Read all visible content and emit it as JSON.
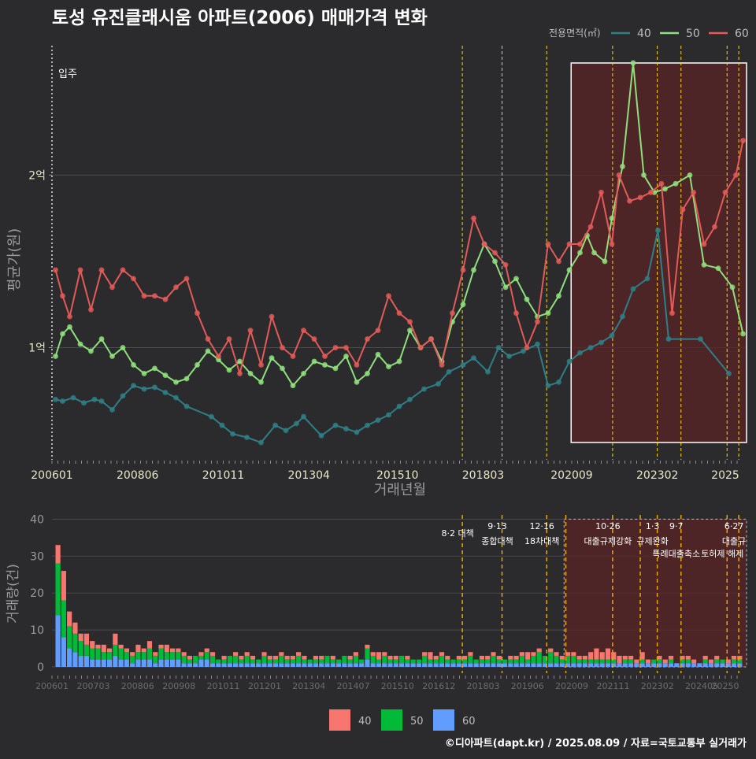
{
  "title": "토성 유진클래시움 아파트(2006) 매매가격 변화",
  "footer": "©디아파트(dapt.kr) / 2025.08.09 / 자료=국토교통부 실거래가",
  "colors": {
    "background": "#2b2b2d",
    "s40": "#2f7f86",
    "s50": "#8fe07c",
    "s60": "#e35a58",
    "bar40": "#f8766d",
    "bar50": "#00ba38",
    "bar60": "#619cff",
    "policy": "#ffd700",
    "policy_bottom": "#e6a800",
    "highlight": "#5a2424"
  },
  "chart_data": [
    {
      "type": "line",
      "title": "토성 유진클래시움 아파트(2006) 매매가격 변화",
      "xlabel": "거래년월",
      "ylabel": "평균가(원)",
      "x_ticks": [
        "200601",
        "200806",
        "201011",
        "201304",
        "201510",
        "201803",
        "202009",
        "202302",
        "2025"
      ],
      "y_ticks": [
        {
          "value": 1.0,
          "label": "1억"
        },
        {
          "value": 2.0,
          "label": "2억"
        }
      ],
      "xlim": [
        2006.0,
        2025.6
      ],
      "ylim": [
        0.35,
        2.75
      ],
      "legend_title": "전용면적(㎡)",
      "legend_position": "top-right",
      "annotation": "입주",
      "annotation_x": 2006.0,
      "policy_lines": [
        2017.58,
        2018.7,
        2019.96,
        2021.82,
        2023.08,
        2023.75,
        2025.05,
        2025.38
      ],
      "highlight_range": [
        2020.65,
        2025.6
      ],
      "series": [
        {
          "name": "40",
          "x": [
            2006.1,
            2006.3,
            2006.6,
            2006.9,
            2007.2,
            2007.4,
            2007.7,
            2008.0,
            2008.3,
            2008.6,
            2008.9,
            2009.2,
            2009.5,
            2009.8,
            2010.5,
            2010.8,
            2011.1,
            2011.5,
            2011.9,
            2012.3,
            2012.6,
            2012.9,
            2013.1,
            2013.6,
            2014.0,
            2014.3,
            2014.6,
            2014.9,
            2015.2,
            2015.5,
            2015.8,
            2016.1,
            2016.5,
            2016.9,
            2017.2,
            2017.6,
            2017.9,
            2018.3,
            2018.6,
            2018.9,
            2019.3,
            2019.7,
            2020.0,
            2020.3,
            2020.6,
            2020.9,
            2021.2,
            2021.5,
            2021.8,
            2022.1,
            2022.4,
            2022.8,
            2023.1,
            2023.4,
            2024.3,
            2025.1
          ],
          "y": [
            0.7,
            0.69,
            0.71,
            0.68,
            0.7,
            0.69,
            0.64,
            0.72,
            0.78,
            0.76,
            0.77,
            0.74,
            0.71,
            0.66,
            0.6,
            0.55,
            0.5,
            0.48,
            0.45,
            0.55,
            0.52,
            0.56,
            0.6,
            0.49,
            0.55,
            0.53,
            0.51,
            0.55,
            0.58,
            0.61,
            0.66,
            0.7,
            0.76,
            0.79,
            0.86,
            0.9,
            0.94,
            0.86,
            1.0,
            0.95,
            0.98,
            1.02,
            0.78,
            0.8,
            0.92,
            0.97,
            1.0,
            1.03,
            1.07,
            1.18,
            1.34,
            1.4,
            1.68,
            1.05,
            1.05,
            0.85
          ]
        },
        {
          "name": "50",
          "x": [
            2006.1,
            2006.3,
            2006.5,
            2006.8,
            2007.1,
            2007.4,
            2007.7,
            2008.0,
            2008.3,
            2008.6,
            2008.9,
            2009.2,
            2009.5,
            2009.8,
            2010.1,
            2010.4,
            2010.7,
            2011.0,
            2011.3,
            2011.6,
            2011.9,
            2012.2,
            2012.5,
            2012.8,
            2013.1,
            2013.4,
            2013.7,
            2014.0,
            2014.3,
            2014.6,
            2014.9,
            2015.2,
            2015.5,
            2015.8,
            2016.1,
            2016.4,
            2016.7,
            2017.0,
            2017.3,
            2017.6,
            2017.9,
            2018.2,
            2018.5,
            2018.8,
            2019.1,
            2019.4,
            2019.7,
            2020.0,
            2020.3,
            2020.6,
            2020.9,
            2021.1,
            2021.3,
            2021.6,
            2021.8,
            2022.1,
            2022.4,
            2022.7,
            2023.0,
            2023.3,
            2023.6,
            2024.0,
            2024.4,
            2024.8,
            2025.2,
            2025.5
          ],
          "y": [
            0.95,
            1.08,
            1.12,
            1.02,
            0.98,
            1.05,
            0.95,
            1.0,
            0.9,
            0.85,
            0.88,
            0.84,
            0.8,
            0.82,
            0.9,
            0.98,
            0.93,
            0.87,
            0.92,
            0.85,
            0.8,
            0.94,
            0.88,
            0.78,
            0.85,
            0.92,
            0.9,
            0.88,
            0.95,
            0.8,
            0.85,
            0.96,
            0.89,
            0.92,
            1.1,
            1.0,
            1.05,
            0.92,
            1.15,
            1.25,
            1.45,
            1.6,
            1.5,
            1.35,
            1.4,
            1.28,
            1.18,
            1.2,
            1.3,
            1.45,
            1.55,
            1.65,
            1.55,
            1.5,
            1.75,
            2.05,
            2.65,
            2.0,
            1.9,
            1.92,
            1.95,
            2.0,
            1.48,
            1.46,
            1.35,
            1.08
          ]
        },
        {
          "name": "60",
          "x": [
            2006.1,
            2006.3,
            2006.5,
            2006.8,
            2007.1,
            2007.4,
            2007.7,
            2008.0,
            2008.3,
            2008.6,
            2008.9,
            2009.2,
            2009.5,
            2009.8,
            2010.1,
            2010.4,
            2010.7,
            2011.0,
            2011.3,
            2011.6,
            2011.9,
            2012.2,
            2012.5,
            2012.8,
            2013.1,
            2013.4,
            2013.7,
            2014.0,
            2014.3,
            2014.6,
            2014.9,
            2015.2,
            2015.5,
            2015.8,
            2016.1,
            2016.4,
            2016.7,
            2017.0,
            2017.3,
            2017.6,
            2017.9,
            2018.2,
            2018.5,
            2018.8,
            2019.1,
            2019.4,
            2019.7,
            2020.0,
            2020.3,
            2020.6,
            2020.9,
            2021.2,
            2021.5,
            2021.8,
            2022.0,
            2022.3,
            2022.6,
            2022.9,
            2023.2,
            2023.5,
            2023.8,
            2024.1,
            2024.4,
            2024.7,
            2025.0,
            2025.3,
            2025.5
          ],
          "y": [
            1.45,
            1.3,
            1.18,
            1.45,
            1.22,
            1.45,
            1.35,
            1.45,
            1.4,
            1.3,
            1.3,
            1.28,
            1.35,
            1.4,
            1.2,
            1.05,
            0.95,
            1.05,
            0.85,
            1.1,
            0.9,
            1.18,
            1.0,
            0.95,
            1.1,
            1.05,
            0.95,
            1.0,
            1.0,
            0.9,
            1.05,
            1.1,
            1.3,
            1.2,
            1.15,
            1.0,
            1.05,
            0.9,
            1.2,
            1.45,
            1.75,
            1.6,
            1.55,
            1.48,
            1.2,
            1.0,
            1.15,
            1.6,
            1.5,
            1.6,
            1.6,
            1.7,
            1.9,
            1.6,
            2.0,
            1.85,
            1.87,
            1.9,
            1.95,
            1.2,
            1.8,
            1.9,
            1.6,
            1.7,
            1.9,
            2.0,
            2.2
          ]
        }
      ]
    },
    {
      "type": "bar",
      "stacked": true,
      "xlabel": "",
      "ylabel": "거래량(건)",
      "x_ticks": [
        "200601",
        "200703",
        "200806",
        "200908",
        "201011",
        "201201",
        "201304",
        "201407",
        "201510",
        "201612",
        "201803",
        "201906",
        "202009",
        "202111",
        "202302",
        "202405",
        "20250"
      ],
      "y_ticks": [
        0,
        10,
        20,
        30,
        40
      ],
      "ylim": [
        0,
        42
      ],
      "legend_position": "bottom",
      "legend": [
        "40",
        "50",
        "60"
      ],
      "highlight_range": [
        2020.45,
        2025.6
      ],
      "policies": [
        {
          "x": 2017.58,
          "date": "",
          "label": "8·2 대책",
          "row": 1
        },
        {
          "x": 2018.7,
          "date": "9·13",
          "label": "종합대책",
          "row": 0
        },
        {
          "x": 2019.96,
          "date": "12·16",
          "label": "18차대책",
          "row": 0
        },
        {
          "x": 2020.5,
          "date": "",
          "label": "",
          "row": 0
        },
        {
          "x": 2021.82,
          "date": "10·26",
          "label": "대출규제강화",
          "row": 0
        },
        {
          "x": 2022.6,
          "date": "",
          "label": "",
          "row": 0
        },
        {
          "x": 2023.08,
          "date": "1·3",
          "label": "규제완화",
          "row": 0
        },
        {
          "x": 2023.75,
          "date": "9·7",
          "label": "특례대출축소",
          "row": 1
        },
        {
          "x": 2025.05,
          "date": "",
          "label": "토허제 해제",
          "row": 1
        },
        {
          "x": 2025.38,
          "date": "6·27",
          "label": "대출규",
          "row": 0
        }
      ],
      "series": [
        {
          "name": "40",
          "values": [
            5,
            8,
            4,
            3,
            2,
            3,
            2,
            1,
            2,
            1,
            3,
            1,
            1,
            1,
            2,
            1,
            2,
            1,
            1,
            2,
            1,
            1,
            1,
            1,
            0,
            1,
            1,
            1,
            0,
            1,
            0,
            1,
            1,
            1,
            1,
            0,
            1,
            1,
            1,
            1,
            1,
            1,
            1,
            1,
            0,
            1,
            1,
            0,
            1,
            0,
            0,
            1,
            1,
            0,
            1,
            1,
            2,
            1,
            1,
            1,
            0,
            1,
            0,
            0,
            1,
            2,
            1,
            1,
            1,
            0,
            1,
            1,
            1,
            0,
            1,
            1,
            1,
            1,
            0,
            1,
            1,
            1,
            2,
            1,
            1,
            0,
            1,
            1,
            1,
            1,
            1,
            1,
            1,
            2,
            3,
            2,
            3,
            2,
            2,
            1,
            1,
            1,
            2,
            1,
            0,
            1,
            1,
            1,
            0,
            1,
            1,
            1,
            0,
            1,
            1,
            1,
            0,
            1,
            1,
            1
          ]
        },
        {
          "name": "50",
          "values": [
            14,
            10,
            6,
            5,
            4,
            3,
            3,
            3,
            2,
            2,
            3,
            3,
            2,
            2,
            2,
            2,
            3,
            2,
            3,
            2,
            2,
            2,
            2,
            1,
            2,
            1,
            2,
            2,
            1,
            1,
            2,
            2,
            1,
            2,
            1,
            1,
            2,
            1,
            1,
            2,
            1,
            1,
            2,
            1,
            1,
            1,
            1,
            2,
            1,
            1,
            2,
            1,
            2,
            1,
            3,
            2,
            1,
            2,
            1,
            1,
            2,
            1,
            1,
            1,
            2,
            1,
            1,
            2,
            1,
            1,
            1,
            1,
            2,
            1,
            1,
            1,
            2,
            1,
            1,
            1,
            1,
            2,
            1,
            2,
            3,
            2,
            3,
            2,
            1,
            2,
            2,
            1,
            1,
            1,
            1,
            1,
            1,
            1,
            0,
            1,
            1,
            0,
            1,
            0,
            1,
            1,
            0,
            1,
            0,
            1,
            1,
            0,
            0,
            1,
            0,
            1,
            1,
            0,
            1,
            1
          ]
        },
        {
          "name": "60",
          "values": [
            14,
            8,
            5,
            4,
            3,
            3,
            2,
            2,
            2,
            2,
            3,
            2,
            2,
            1,
            2,
            2,
            2,
            1,
            2,
            2,
            2,
            2,
            1,
            1,
            1,
            2,
            2,
            1,
            1,
            1,
            1,
            1,
            1,
            1,
            1,
            1,
            1,
            1,
            1,
            1,
            1,
            1,
            1,
            1,
            1,
            1,
            1,
            1,
            1,
            1,
            1,
            1,
            1,
            1,
            2,
            1,
            1,
            1,
            1,
            1,
            1,
            1,
            1,
            1,
            1,
            1,
            1,
            1,
            1,
            1,
            1,
            1,
            1,
            1,
            1,
            1,
            1,
            1,
            1,
            1,
            1,
            1,
            1,
            1,
            1,
            1,
            1,
            1,
            1,
            1,
            1,
            1,
            1,
            1,
            1,
            1,
            1,
            1,
            1,
            1,
            1,
            1,
            1,
            1,
            1,
            1,
            1,
            1,
            1,
            1,
            1,
            1,
            1,
            1,
            1,
            1,
            1,
            1,
            1,
            1
          ]
        }
      ]
    }
  ]
}
